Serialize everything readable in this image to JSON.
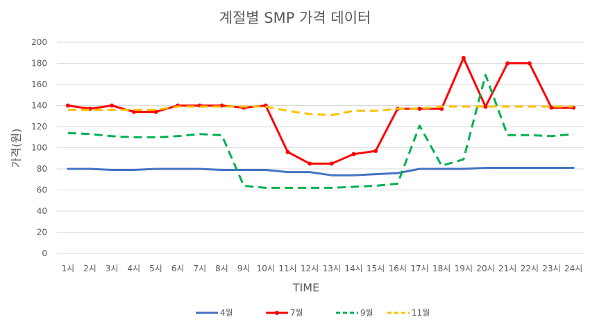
{
  "chart_data": {
    "type": "line",
    "title": "계절별 SMP 가격 데이터",
    "xlabel": "TIME",
    "ylabel": "가격(원)",
    "ylim": [
      0,
      200
    ],
    "yticks": [
      0,
      20,
      40,
      60,
      80,
      100,
      120,
      140,
      160,
      180,
      200
    ],
    "grid": true,
    "legend_position": "bottom",
    "categories": [
      "1시",
      "2시",
      "3시",
      "4시",
      "5시",
      "6시",
      "7시",
      "8시",
      "9시",
      "10시",
      "11시",
      "12시",
      "13시",
      "14시",
      "15시",
      "16시",
      "17시",
      "18시",
      "19시",
      "20시",
      "21시",
      "22시",
      "23시",
      "24시"
    ],
    "series": [
      {
        "name": "4월",
        "color": "#4472c4",
        "dash": "solid",
        "markers": false,
        "values": [
          80,
          80,
          79,
          79,
          80,
          80,
          80,
          79,
          79,
          79,
          77,
          77,
          74,
          74,
          75,
          76,
          80,
          80,
          80,
          81,
          81,
          81,
          81,
          81
        ]
      },
      {
        "name": "7월",
        "color": "#ff0000",
        "dash": "solid",
        "markers": true,
        "values": [
          140,
          137,
          140,
          134,
          134,
          140,
          140,
          140,
          138,
          140,
          96,
          85,
          85,
          94,
          97,
          137,
          137,
          137,
          185,
          139,
          180,
          180,
          138,
          138
        ]
      },
      {
        "name": "9월",
        "color": "#00b050",
        "dash": "dashed",
        "markers": false,
        "values": [
          114,
          113,
          111,
          110,
          110,
          111,
          113,
          112,
          64,
          62,
          62,
          62,
          62,
          63,
          64,
          66,
          121,
          83,
          89,
          169,
          112,
          112,
          111,
          113
        ]
      },
      {
        "name": "11월",
        "color": "#ffc000",
        "dash": "dashed",
        "markers": false,
        "values": [
          136,
          136,
          136,
          136,
          136,
          139,
          139,
          139,
          139,
          139,
          135,
          132,
          131,
          135,
          135,
          137,
          137,
          139,
          139,
          139,
          139,
          139,
          139,
          139
        ]
      }
    ]
  }
}
